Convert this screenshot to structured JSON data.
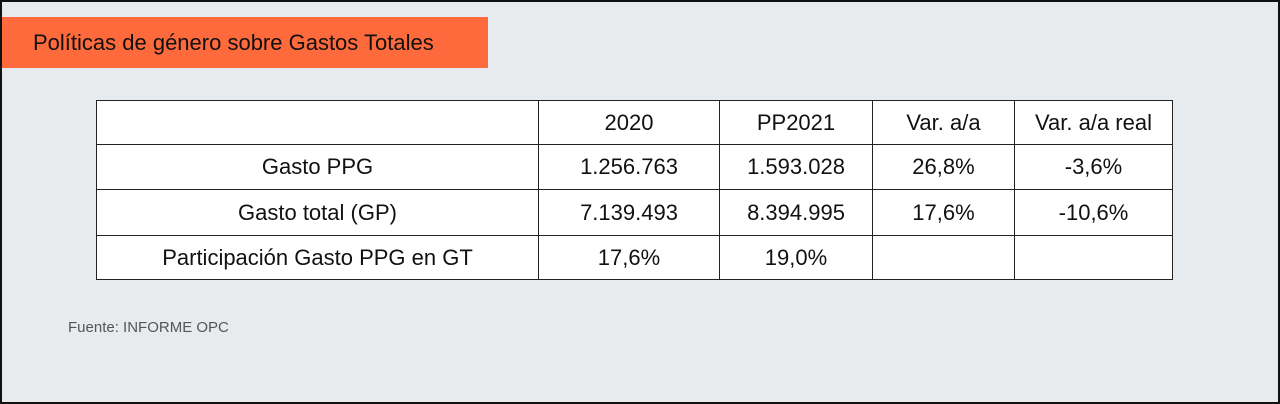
{
  "header": {
    "title": "Políticas de género sobre Gastos Totales"
  },
  "table": {
    "columns": [
      "2020",
      "PP2021",
      "Var. a/a",
      "Var. a/a real"
    ],
    "rows": [
      [
        "Gasto PPG",
        "1.256.763",
        "1.593.028",
        "26,8%",
        "-3,6%"
      ],
      [
        "Gasto total (GP)",
        "7.139.493",
        "8.394.995",
        "17,6%",
        "-10,6%"
      ],
      [
        "Participación Gasto PPG en GT",
        "17,6%",
        "19,0%"
      ]
    ]
  },
  "footer": {
    "source": "Fuente: INFORME OPC"
  }
}
